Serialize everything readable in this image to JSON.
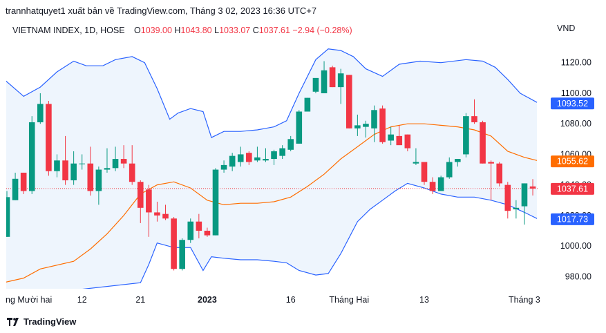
{
  "header": {
    "publisher": "trannhatquyet1 xuất bản về TradingView.com, Tháng 3 02, 2023 16:36 UTC+7"
  },
  "legend": {
    "symbol": "VIETNAM INDEX, 1D, HOSE",
    "o_label": "O",
    "o_value": "1039.00",
    "h_label": "H",
    "h_value": "1043.80",
    "l_label": "L",
    "l_value": "1033.07",
    "c_label": "C",
    "c_value": "1037.61",
    "change": "−2.94 (−0.28%)"
  },
  "currency": "VND",
  "brand": {
    "name": "TradingView"
  },
  "colors": {
    "up": "#089981",
    "down": "#f23645",
    "band": "#2962ff",
    "band_fill": "#eef5fd",
    "basis": "#ff6d00",
    "price_line": "#f23645"
  },
  "chart_data": {
    "type": "candlestick",
    "ylim": [
      972,
      1133
    ],
    "y_ticks": [
      "980.00",
      "1000.00",
      "1020.00",
      "1040.00",
      "1060.00",
      "1080.00",
      "1100.00",
      "1120.00"
    ],
    "x_ticks": [
      {
        "label": "ng Mười hai",
        "index": 0
      },
      {
        "label": "12",
        "index": 9
      },
      {
        "label": "21",
        "index": 16
      },
      {
        "label": "2023",
        "index": 24,
        "bold": true
      },
      {
        "label": "16",
        "index": 34
      },
      {
        "label": "Tháng Hai",
        "index": 41
      },
      {
        "label": "13",
        "index": 50
      },
      {
        "label": "Tháng 3",
        "index": 62
      }
    ],
    "price_labels": [
      {
        "value": 1093.52,
        "text": "1093.52",
        "color": "#2962ff"
      },
      {
        "value": 1055.62,
        "text": "1055.62",
        "color": "#ff6d00"
      },
      {
        "value": 1037.61,
        "text": "1037.61",
        "color": "#f23645"
      },
      {
        "value": 1017.73,
        "text": "1017.73",
        "color": "#2962ff"
      }
    ],
    "last_price": 1037.61,
    "candles": [
      {
        "o": 1006,
        "h": 1036,
        "l": 1006,
        "c": 1032
      },
      {
        "o": 1030,
        "h": 1048,
        "l": 1030,
        "c": 1044
      },
      {
        "o": 1048,
        "h": 1048,
        "l": 1034,
        "c": 1036
      },
      {
        "o": 1036,
        "h": 1085,
        "l": 1034,
        "c": 1081
      },
      {
        "o": 1081,
        "h": 1100,
        "l": 1080,
        "c": 1093
      },
      {
        "o": 1093,
        "h": 1095,
        "l": 1046,
        "c": 1049
      },
      {
        "o": 1049,
        "h": 1060,
        "l": 1045,
        "c": 1056
      },
      {
        "o": 1056,
        "h": 1072,
        "l": 1040,
        "c": 1043
      },
      {
        "o": 1043,
        "h": 1062,
        "l": 1040,
        "c": 1054
      },
      {
        "o": 1054,
        "h": 1060,
        "l": 1050,
        "c": 1054
      },
      {
        "o": 1054,
        "h": 1065,
        "l": 1033,
        "c": 1036
      },
      {
        "o": 1036,
        "h": 1052,
        "l": 1027,
        "c": 1050
      },
      {
        "o": 1050,
        "h": 1064,
        "l": 1048,
        "c": 1051
      },
      {
        "o": 1051,
        "h": 1065,
        "l": 1049,
        "c": 1057
      },
      {
        "o": 1057,
        "h": 1066,
        "l": 1051,
        "c": 1054
      },
      {
        "o": 1054,
        "h": 1066,
        "l": 1040,
        "c": 1042
      },
      {
        "o": 1042,
        "h": 1043,
        "l": 1015,
        "c": 1025
      },
      {
        "o": 1037,
        "h": 1040,
        "l": 1006,
        "c": 1022
      },
      {
        "o": 1022,
        "h": 1029,
        "l": 1016,
        "c": 1020
      },
      {
        "o": 1021,
        "h": 1027,
        "l": 1017,
        "c": 1018
      },
      {
        "o": 1018,
        "h": 1019,
        "l": 984,
        "c": 985
      },
      {
        "o": 985,
        "h": 1005,
        "l": 984,
        "c": 1004
      },
      {
        "o": 1004,
        "h": 1018,
        "l": 1002,
        "c": 1016
      },
      {
        "o": 1016,
        "h": 1021,
        "l": 1005,
        "c": 1010
      },
      {
        "o": 1010,
        "h": 1012,
        "l": 1006,
        "c": 1007
      },
      {
        "o": 1007,
        "h": 1051,
        "l": 1007,
        "c": 1050
      },
      {
        "o": 1050,
        "h": 1056,
        "l": 1048,
        "c": 1053
      },
      {
        "o": 1052,
        "h": 1061,
        "l": 1049,
        "c": 1059
      },
      {
        "o": 1055,
        "h": 1065,
        "l": 1052,
        "c": 1060
      },
      {
        "o": 1061,
        "h": 1062,
        "l": 1053,
        "c": 1055
      },
      {
        "o": 1056,
        "h": 1065,
        "l": 1055,
        "c": 1058
      },
      {
        "o": 1056,
        "h": 1064,
        "l": 1055,
        "c": 1057
      },
      {
        "o": 1057,
        "h": 1063,
        "l": 1053,
        "c": 1062
      },
      {
        "o": 1059,
        "h": 1066,
        "l": 1057,
        "c": 1064
      },
      {
        "o": 1063,
        "h": 1072,
        "l": 1062,
        "c": 1070
      },
      {
        "o": 1067,
        "h": 1089,
        "l": 1067,
        "c": 1088
      },
      {
        "o": 1088,
        "h": 1097,
        "l": 1088,
        "c": 1097
      },
      {
        "o": 1101,
        "h": 1109,
        "l": 1100,
        "c": 1110
      },
      {
        "o": 1100,
        "h": 1121,
        "l": 1100,
        "c": 1115
      },
      {
        "o": 1117,
        "h": 1118,
        "l": 1104,
        "c": 1104
      },
      {
        "o": 1104,
        "h": 1116,
        "l": 1093,
        "c": 1113
      },
      {
        "o": 1112,
        "h": 1112,
        "l": 1077,
        "c": 1077
      },
      {
        "o": 1077,
        "h": 1086,
        "l": 1072,
        "c": 1079
      },
      {
        "o": 1078,
        "h": 1082,
        "l": 1071,
        "c": 1080
      },
      {
        "o": 1077,
        "h": 1092,
        "l": 1068,
        "c": 1089
      },
      {
        "o": 1090,
        "h": 1092,
        "l": 1067,
        "c": 1068
      },
      {
        "o": 1069,
        "h": 1078,
        "l": 1066,
        "c": 1073
      },
      {
        "o": 1072,
        "h": 1079,
        "l": 1067,
        "c": 1066
      },
      {
        "o": 1073,
        "h": 1073,
        "l": 1062,
        "c": 1064
      },
      {
        "o": 1054,
        "h": 1064,
        "l": 1053,
        "c": 1055
      },
      {
        "o": 1055,
        "h": 1055,
        "l": 1040,
        "c": 1042
      },
      {
        "o": 1042,
        "h": 1045,
        "l": 1034,
        "c": 1036
      },
      {
        "o": 1036,
        "h": 1046,
        "l": 1036,
        "c": 1045
      },
      {
        "o": 1045,
        "h": 1058,
        "l": 1044,
        "c": 1055
      },
      {
        "o": 1055,
        "h": 1056,
        "l": 1052,
        "c": 1057
      },
      {
        "o": 1060,
        "h": 1087,
        "l": 1058,
        "c": 1085
      },
      {
        "o": 1085,
        "h": 1096,
        "l": 1080,
        "c": 1081
      },
      {
        "o": 1081,
        "h": 1082,
        "l": 1054,
        "c": 1054
      },
      {
        "o": 1055,
        "h": 1056,
        "l": 1030,
        "c": 1054
      },
      {
        "o": 1054,
        "h": 1055,
        "l": 1039,
        "c": 1041
      },
      {
        "o": 1040,
        "h": 1042,
        "l": 1018,
        "c": 1023
      },
      {
        "o": 1024,
        "h": 1030,
        "l": 1018,
        "c": 1025
      },
      {
        "o": 1026,
        "h": 1041,
        "l": 1014,
        "c": 1041
      },
      {
        "o": 1039,
        "h": 1043.8,
        "l": 1033.07,
        "c": 1037.61
      }
    ],
    "bollinger_basis": [
      [
        -2,
        974
      ],
      [
        2,
        979
      ],
      [
        4,
        985
      ],
      [
        8,
        990
      ],
      [
        10,
        998
      ],
      [
        12,
        1008
      ],
      [
        14,
        1020
      ],
      [
        16,
        1034
      ],
      [
        18,
        1040
      ],
      [
        20,
        1042
      ],
      [
        22,
        1038
      ],
      [
        24,
        1030
      ],
      [
        26,
        1027
      ],
      [
        28,
        1028
      ],
      [
        30,
        1028
      ],
      [
        32,
        1029
      ],
      [
        34,
        1032
      ],
      [
        36,
        1039
      ],
      [
        38,
        1047
      ],
      [
        40,
        1057
      ],
      [
        42,
        1065
      ],
      [
        44,
        1073
      ],
      [
        46,
        1078
      ],
      [
        48,
        1080
      ],
      [
        50,
        1080
      ],
      [
        52,
        1079
      ],
      [
        54,
        1078
      ],
      [
        56,
        1076
      ],
      [
        58,
        1072
      ],
      [
        60,
        1062
      ],
      [
        62,
        1058
      ],
      [
        63.5,
        1056
      ]
    ],
    "bollinger_upper": [
      [
        -2,
        1117
      ],
      [
        2,
        1098
      ],
      [
        4,
        1104
      ],
      [
        6,
        1114
      ],
      [
        8,
        1121
      ],
      [
        9.5,
        1118
      ],
      [
        11.5,
        1118
      ],
      [
        13,
        1122
      ],
      [
        15,
        1124
      ],
      [
        16.5,
        1120
      ],
      [
        18,
        1103
      ],
      [
        19.5,
        1083
      ],
      [
        20.5,
        1087
      ],
      [
        22,
        1090
      ],
      [
        23.5,
        1088
      ],
      [
        24.5,
        1071
      ],
      [
        26,
        1075
      ],
      [
        28,
        1075
      ],
      [
        30,
        1076
      ],
      [
        32,
        1078
      ],
      [
        33.5,
        1082
      ],
      [
        35,
        1100
      ],
      [
        37,
        1122
      ],
      [
        38.5,
        1129
      ],
      [
        40,
        1128
      ],
      [
        41.5,
        1124
      ],
      [
        43,
        1116
      ],
      [
        45,
        1111
      ],
      [
        47,
        1119
      ],
      [
        49.5,
        1121
      ],
      [
        52,
        1120
      ],
      [
        55,
        1122
      ],
      [
        57,
        1121
      ],
      [
        58.5,
        1117
      ],
      [
        60,
        1109
      ],
      [
        61.5,
        1100
      ],
      [
        63.5,
        1094
      ]
    ],
    "bollinger_lower": [
      [
        -2,
        965
      ],
      [
        16,
        976
      ],
      [
        17,
        988
      ],
      [
        18,
        1002
      ],
      [
        20,
        999
      ],
      [
        22,
        999
      ],
      [
        23.5,
        984
      ],
      [
        24.5,
        993
      ],
      [
        26,
        992
      ],
      [
        28,
        991
      ],
      [
        30,
        991
      ],
      [
        32,
        990
      ],
      [
        33.5,
        989
      ],
      [
        35,
        984
      ],
      [
        37,
        981
      ],
      [
        38.5,
        982
      ],
      [
        40,
        995
      ],
      [
        42,
        1016
      ],
      [
        43.5,
        1024
      ],
      [
        45,
        1030
      ],
      [
        46.5,
        1036
      ],
      [
        48,
        1041
      ],
      [
        50,
        1038
      ],
      [
        52,
        1034
      ],
      [
        54,
        1032
      ],
      [
        56,
        1032
      ],
      [
        58,
        1030
      ],
      [
        60,
        1027
      ],
      [
        62,
        1022
      ],
      [
        63.5,
        1018
      ]
    ]
  }
}
